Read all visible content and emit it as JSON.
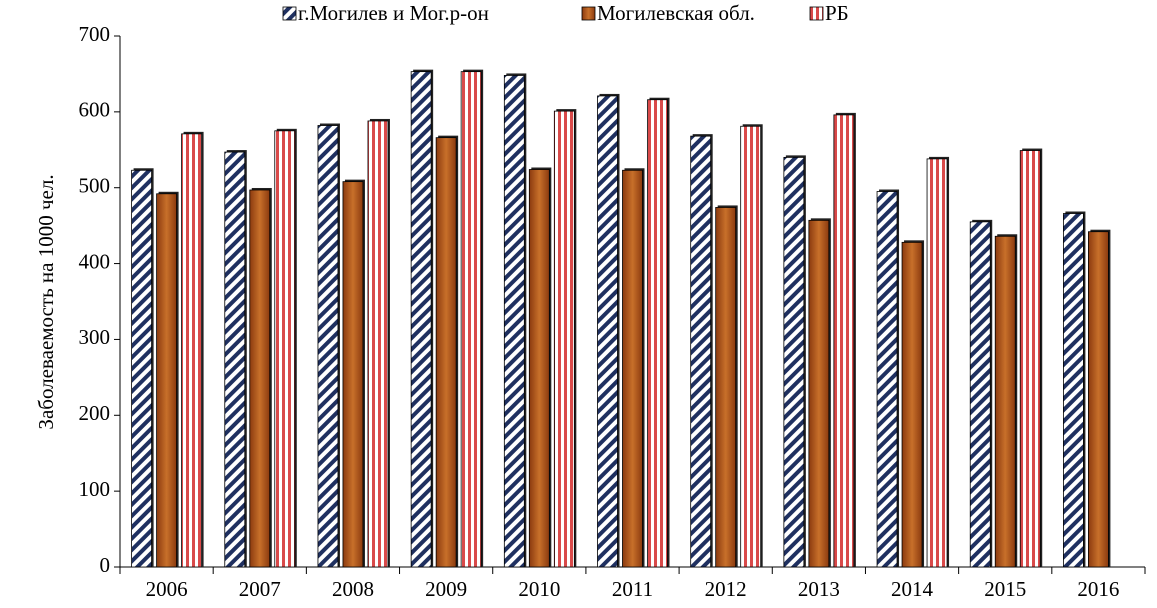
{
  "chart_data": {
    "type": "bar",
    "y_label": "Заболеваемость на 1000 чел.",
    "categories": [
      "2006",
      "2007",
      "2008",
      "2009",
      "2010",
      "2011",
      "2012",
      "2013",
      "2014",
      "2015",
      "2016"
    ],
    "series": [
      {
        "name": "г.Могилев и Мог.р-он",
        "color": "#1f3060",
        "values": [
          523,
          547,
          582,
          653,
          648,
          621,
          568,
          540,
          495,
          455,
          466
        ]
      },
      {
        "name": "Могилевская обл.",
        "color": "#8b3a0f",
        "values": [
          492,
          497,
          508,
          566,
          524,
          523,
          474,
          457,
          428,
          436,
          442
        ]
      },
      {
        "name": "РБ",
        "color": "#d94a4a",
        "values": [
          571,
          575,
          588,
          653,
          601,
          616,
          581,
          596,
          538,
          549,
          null
        ]
      }
    ],
    "ylim": [
      0,
      700
    ],
    "yticks": [
      0,
      100,
      200,
      300,
      400,
      500,
      600,
      700
    ],
    "legend": "top"
  }
}
